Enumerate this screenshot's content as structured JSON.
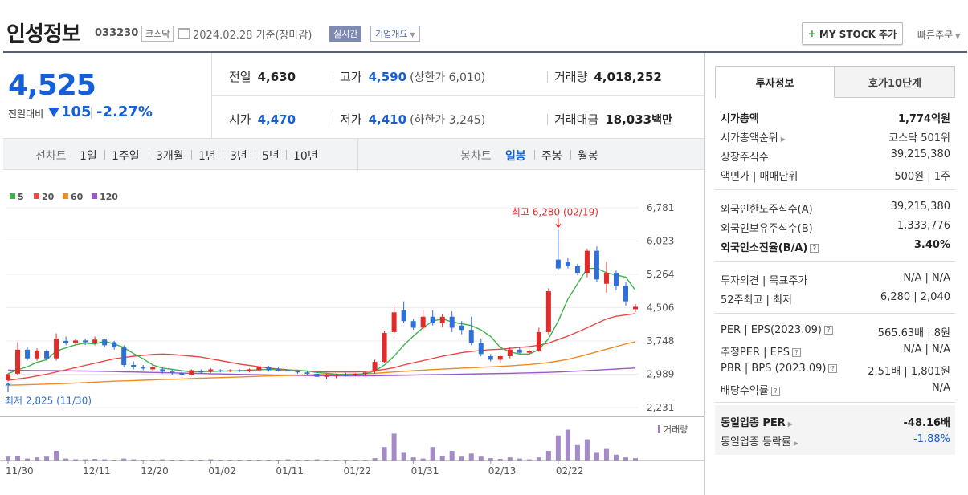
{
  "header": {
    "name": "인성정보",
    "code": "033230",
    "market": "코스닥",
    "date": "2024.02.28 기준(장마감)",
    "realtime": "실시간",
    "overview": "기업개요",
    "mystock": "MY STOCK 추가",
    "quick": "빠른주문"
  },
  "price": {
    "current": "4,525",
    "prev_label": "전일대비",
    "change": "105",
    "change_pct": "-2.27%"
  },
  "stats": {
    "prev_close_label": "전일",
    "prev_close": "4,630",
    "high_label": "고가",
    "high": "4,590",
    "upper_limit": "(상한가 6,010)",
    "volume_label": "거래량",
    "volume": "4,018,252",
    "open_label": "시가",
    "open": "4,470",
    "low_label": "저가",
    "low": "4,410",
    "lower_limit": "(하한가 3,245)",
    "amount_label": "거래대금",
    "amount": "18,033",
    "amount_unit": "백만"
  },
  "period": {
    "line_label": "선차트",
    "line_items": [
      "1일",
      "1주일",
      "3개월",
      "1년",
      "3년",
      "5년",
      "10년"
    ],
    "candle_label": "봉차트",
    "candle_items": [
      "일봉",
      "주봉",
      "월봉"
    ],
    "candle_active": "일봉"
  },
  "tabs": {
    "invest": "투자정보",
    "quote": "호가10단계"
  },
  "info": {
    "mktcap_k": "시가총액",
    "mktcap_v": "1,774억원",
    "mktrank_k": "시가총액순위",
    "mktrank_v": "코스닥 501위",
    "shares_k": "상장주식수",
    "shares_v": "39,215,380",
    "par_k": "액면가 | 매매단위",
    "par_v": "500원 | 1주",
    "forlimit_k": "외국인한도주식수(A)",
    "forlimit_v": "39,215,380",
    "forhold_k": "외국인보유주식수(B)",
    "forhold_v": "1,333,776",
    "forratio_k": "외국인소진율(B/A)",
    "forratio_v": "3.40%",
    "opinion_k": "투자의견 | 목표주가",
    "opinion_v": "N/A | N/A",
    "w52_k": "52주최고 | 최저",
    "w52_v": "6,280 | 2,040",
    "per_k": "PER | EPS(2023.09)",
    "per_v": "565.63배 | 8원",
    "eper_k": "추정PER | EPS",
    "eper_v": "N/A | N/A",
    "pbr_k": "PBR | BPS (2023.09)",
    "pbr_v": "2.51배 | 1,801원",
    "div_k": "배당수익률",
    "div_v": "N/A",
    "ind_per_k": "동일업종 PER",
    "ind_per_v": "-48.16배",
    "ind_rate_k": "동일업종 등락률",
    "ind_rate_v": "-1.88%"
  },
  "chart_data": {
    "type": "candlestick",
    "legend": [
      {
        "name": "5",
        "color": "#3cb54a"
      },
      {
        "name": "20",
        "color": "#e84848"
      },
      {
        "name": "60",
        "color": "#f08a24"
      },
      {
        "name": "120",
        "color": "#9b59d0"
      }
    ],
    "y_ticks": [
      "6,781",
      "6,023",
      "5,264",
      "4,506",
      "3,748",
      "2,989",
      "2,231"
    ],
    "ylim": [
      2231,
      6781
    ],
    "x_labels": [
      "11/30",
      "12/11",
      "12/20",
      "01/02",
      "01/11",
      "01/22",
      "01/31",
      "02/13",
      "02/22"
    ],
    "max_annotation": "최고 6,280 (02/19)",
    "min_annotation": "최저 2,825 (11/30)",
    "volume_label": "거래량",
    "candles": [
      [
        2850,
        3000,
        2825,
        2990
      ],
      [
        3000,
        3720,
        2980,
        3550
      ],
      [
        3550,
        3600,
        3300,
        3350
      ],
      [
        3350,
        3580,
        3300,
        3530
      ],
      [
        3520,
        3560,
        3300,
        3350
      ],
      [
        3350,
        3920,
        3300,
        3800
      ],
      [
        3750,
        3850,
        3650,
        3700
      ],
      [
        3700,
        3800,
        3650,
        3760
      ],
      [
        3760,
        3800,
        3650,
        3720
      ],
      [
        3700,
        3850,
        3650,
        3780
      ],
      [
        3780,
        3800,
        3600,
        3650
      ],
      [
        3720,
        3750,
        3550,
        3600
      ],
      [
        3600,
        3650,
        3150,
        3200
      ],
      [
        3200,
        3280,
        3100,
        3150
      ],
      [
        3150,
        3200,
        3080,
        3120
      ],
      [
        3100,
        3200,
        3050,
        3150
      ],
      [
        3100,
        3150,
        3000,
        3050
      ],
      [
        3050,
        3100,
        2980,
        3020
      ],
      [
        3020,
        3080,
        2950,
        2980
      ],
      [
        2980,
        3100,
        2960,
        3080
      ],
      [
        3060,
        3100,
        3000,
        3030
      ],
      [
        3050,
        3130,
        3020,
        3100
      ],
      [
        3080,
        3100,
        3030,
        3060
      ],
      [
        3060,
        3100,
        3040,
        3080
      ],
      [
        3080,
        3100,
        3040,
        3060
      ],
      [
        3060,
        3120,
        3030,
        3100
      ],
      [
        3080,
        3200,
        3050,
        3150
      ],
      [
        3150,
        3180,
        3050,
        3080
      ],
      [
        3100,
        3160,
        3050,
        3070
      ],
      [
        3080,
        3120,
        3040,
        3060
      ],
      [
        3060,
        3080,
        3000,
        3030
      ],
      [
        3030,
        3070,
        2980,
        3000
      ],
      [
        3000,
        3050,
        2900,
        2930
      ],
      [
        2930,
        3000,
        2870,
        2960
      ],
      [
        2950,
        3000,
        2900,
        2980
      ],
      [
        2980,
        3020,
        2940,
        2970
      ],
      [
        2970,
        3010,
        2940,
        3000
      ],
      [
        3000,
        3050,
        2950,
        3030
      ],
      [
        3050,
        3320,
        3000,
        3270
      ],
      [
        3270,
        3980,
        3250,
        3930
      ],
      [
        3950,
        4550,
        3900,
        4400
      ],
      [
        4450,
        4650,
        4150,
        4200
      ],
      [
        4200,
        4250,
        4000,
        4050
      ],
      [
        4050,
        4450,
        4000,
        4300
      ],
      [
        4300,
        4450,
        4100,
        4150
      ],
      [
        4150,
        4350,
        4050,
        4300
      ],
      [
        4300,
        4420,
        3950,
        4050
      ],
      [
        4100,
        4200,
        3900,
        4000
      ],
      [
        4000,
        4300,
        3650,
        3700
      ],
      [
        3700,
        3800,
        3400,
        3450
      ],
      [
        3400,
        3450,
        3280,
        3320
      ],
      [
        3320,
        3420,
        3250,
        3400
      ],
      [
        3400,
        3600,
        3350,
        3550
      ],
      [
        3550,
        3620,
        3450,
        3480
      ],
      [
        3480,
        3550,
        3420,
        3520
      ],
      [
        3530,
        4050,
        3500,
        3950
      ],
      [
        3950,
        4950,
        3900,
        4880
      ],
      [
        5600,
        6280,
        5350,
        5400
      ],
      [
        5550,
        5650,
        5400,
        5450
      ],
      [
        5450,
        5500,
        5250,
        5300
      ],
      [
        5300,
        5850,
        5200,
        5800
      ],
      [
        5800,
        5900,
        5100,
        5150
      ],
      [
        5050,
        5550,
        4850,
        5300
      ],
      [
        5300,
        5350,
        4900,
        5000
      ],
      [
        5000,
        5100,
        4550,
        4650
      ],
      [
        4470,
        4590,
        4410,
        4525
      ]
    ],
    "ma5": [
      3000,
      3090,
      3160,
      3260,
      3320,
      3520,
      3590,
      3660,
      3700,
      3680,
      3740,
      3680,
      3600,
      3460,
      3340,
      3200,
      3130,
      3100,
      3070,
      3040,
      3050,
      3050,
      3060,
      3060,
      3070,
      3080,
      3090,
      3100,
      3090,
      3080,
      3080,
      3060,
      3030,
      3010,
      2990,
      2980,
      2980,
      3000,
      3060,
      3200,
      3400,
      3650,
      3860,
      4050,
      4200,
      4250,
      4180,
      4140,
      4100,
      4000,
      3850,
      3600,
      3500,
      3450,
      3450,
      3550,
      3800,
      4200,
      4700,
      5050,
      5400,
      5400,
      5300,
      5250,
      5200,
      4900
    ],
    "ma20": [
      2850,
      2880,
      2910,
      2950,
      2990,
      3040,
      3090,
      3140,
      3190,
      3240,
      3290,
      3340,
      3370,
      3400,
      3420,
      3440,
      3450,
      3440,
      3420,
      3400,
      3380,
      3340,
      3300,
      3260,
      3220,
      3190,
      3160,
      3130,
      3110,
      3090,
      3070,
      3060,
      3050,
      3040,
      3040,
      3040,
      3040,
      3050,
      3070,
      3100,
      3140,
      3200,
      3250,
      3300,
      3350,
      3400,
      3440,
      3480,
      3510,
      3530,
      3550,
      3560,
      3580,
      3600,
      3620,
      3650,
      3700,
      3780,
      3860,
      3950,
      4050,
      4150,
      4250,
      4310,
      4340,
      4370
    ],
    "ma60": [
      2740,
      2745,
      2750,
      2758,
      2765,
      2772,
      2780,
      2790,
      2800,
      2810,
      2820,
      2830,
      2838,
      2845,
      2852,
      2860,
      2868,
      2875,
      2882,
      2890,
      2898,
      2905,
      2912,
      2920,
      2928,
      2935,
      2942,
      2950,
      2956,
      2962,
      2968,
      2972,
      2976,
      2980,
      2985,
      2990,
      2995,
      3000,
      3010,
      3025,
      3040,
      3055,
      3070,
      3082,
      3095,
      3107,
      3118,
      3128,
      3138,
      3148,
      3158,
      3168,
      3180,
      3195,
      3210,
      3230,
      3255,
      3290,
      3330,
      3380,
      3440,
      3500,
      3560,
      3620,
      3680,
      3730
    ],
    "ma120": [
      3080,
      3078,
      3076,
      3074,
      3072,
      3070,
      3068,
      3065,
      3062,
      3058,
      3055,
      3050,
      3045,
      3040,
      3035,
      3030,
      3025,
      3020,
      3015,
      3010,
      3005,
      3000,
      2995,
      2990,
      2985,
      2980,
      2976,
      2972,
      2968,
      2964,
      2960,
      2958,
      2956,
      2954,
      2953,
      2952,
      2952,
      2953,
      2955,
      2958,
      2962,
      2966,
      2970,
      2974,
      2978,
      2982,
      2986,
      2990,
      2994,
      2998,
      3002,
      3006,
      3010,
      3015,
      3020,
      3026,
      3032,
      3040,
      3050,
      3060,
      3072,
      3084,
      3096,
      3108,
      3120,
      3130
    ],
    "volume": [
      0.1,
      0.12,
      0.05,
      0.08,
      0.1,
      0.25,
      0.05,
      0.03,
      0.03,
      0.04,
      0.03,
      0.02,
      0.05,
      0.03,
      0.02,
      0.02,
      0.03,
      0.02,
      0.02,
      0.02,
      0.02,
      0.03,
      0.02,
      0.02,
      0.02,
      0.02,
      0.02,
      0.02,
      0.02,
      0.03,
      0.02,
      0.02,
      0.03,
      0.02,
      0.02,
      0.02,
      0.02,
      0.02,
      0.06,
      0.35,
      0.7,
      0.2,
      0.08,
      0.05,
      0.35,
      0.12,
      0.25,
      0.1,
      0.18,
      0.1,
      0.06,
      0.04,
      0.08,
      0.05,
      0.03,
      0.08,
      0.25,
      0.65,
      0.8,
      0.4,
      0.55,
      0.2,
      0.3,
      0.15,
      0.08,
      0.06
    ]
  }
}
